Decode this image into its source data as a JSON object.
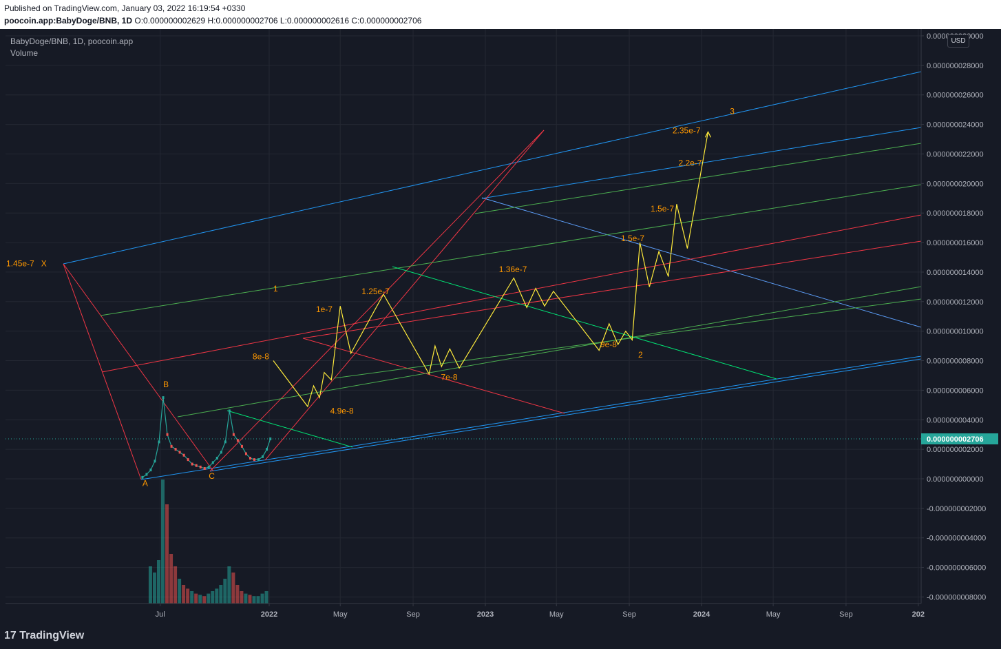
{
  "header": {
    "published": "Published on TradingView.com, January 03, 2022 16:19:54 +0330",
    "symbol": "poocoin.app:BabyDoge/BNB, 1D",
    "o_label": "O:",
    "o_value": "0.000000002629",
    "h_label": "H:",
    "h_value": "0.000000002706",
    "l_label": "L:",
    "l_value": "0.000000002616",
    "c_label": "C:",
    "c_value": "0.000000002706"
  },
  "legend": {
    "title": "BabyDoge/BNB, 1D, poocoin.app",
    "volume": "Volume"
  },
  "currency_button": "USD",
  "footer": {
    "logo": "TradingView"
  },
  "colors": {
    "background": "#161a25",
    "grid": "#242833",
    "candle_up": "#26a69a",
    "candle_down": "#ef5350",
    "projection": "#ffeb3b",
    "annotation": "#ff9800",
    "price_tag": "#26a69a"
  },
  "chart_data": {
    "type": "line",
    "ylim": [
      -9e-09,
      3e-08
    ],
    "x_tick_labels": [
      "Jul",
      "2022",
      "May",
      "Sep",
      "2023",
      "May",
      "Sep",
      "2024",
      "May",
      "Sep",
      "202"
    ],
    "y_tick_labels": [
      "0.000000030000",
      "0.000000028000",
      "0.000000026000",
      "0.000000024000",
      "0.000000022000",
      "0.000000020000",
      "0.000000018000",
      "0.000000016000",
      "0.000000014000",
      "0.000000012000",
      "0.000000010000",
      "0.000000008000",
      "0.000000006000",
      "0.000000004000",
      "0.000000002000",
      "0.000000000000",
      "-0.000000002000",
      "-0.000000004000",
      "-0.000000006000",
      "-0.000000008000"
    ],
    "y_ticks": [
      3e-08,
      2.8e-08,
      2.6e-08,
      2.4e-08,
      2.2e-08,
      2e-08,
      1.8e-08,
      1.6e-08,
      1.4e-08,
      1.2e-08,
      1e-08,
      8e-09,
      6e-09,
      4e-09,
      2e-09,
      0.0,
      -2e-09,
      -4e-09,
      -6e-09,
      -8e-09
    ],
    "last_price": {
      "label": "0.000000002706",
      "value": 2.706e-09
    },
    "price_series": {
      "x": [
        "2021-06-01",
        "2021-06-08",
        "2021-06-15",
        "2021-06-22",
        "2021-06-29",
        "2021-07-06",
        "2021-07-13",
        "2021-07-20",
        "2021-07-27",
        "2021-08-03",
        "2021-08-10",
        "2021-08-17",
        "2021-08-24",
        "2021-08-31",
        "2021-09-07",
        "2021-09-14",
        "2021-09-21",
        "2021-09-28",
        "2021-10-05",
        "2021-10-12",
        "2021-10-19",
        "2021-10-26",
        "2021-11-02",
        "2021-11-09",
        "2021-11-16",
        "2021-11-23",
        "2021-11-30",
        "2021-12-07",
        "2021-12-14",
        "2021-12-21",
        "2021-12-28",
        "2022-01-03"
      ],
      "y": [
        1e-10,
        3e-10,
        6e-10,
        1.2e-09,
        2.5e-09,
        5.5e-09,
        3e-09,
        2.2e-09,
        2e-09,
        1.8e-09,
        1.6e-09,
        1.3e-09,
        1e-09,
        9e-10,
        8e-10,
        7e-10,
        8e-10,
        1.1e-09,
        1.4e-09,
        1.8e-09,
        2.5e-09,
        4.6e-09,
        3e-09,
        2.6e-09,
        2.2e-09,
        1.7e-09,
        1.4e-09,
        1.3e-09,
        1.3e-09,
        1.5e-09,
        2e-09,
        2.706e-09
      ]
    },
    "projection": {
      "x": [
        "2022-01-08",
        "2022-03-07",
        "2022-03-17",
        "2022-03-27",
        "2022-04-04",
        "2022-04-16",
        "2022-05-01",
        "2022-05-19",
        "2022-07-13",
        "2022-09-28",
        "2022-10-08",
        "2022-10-19",
        "2022-11-02",
        "2022-11-18",
        "2023-02-18",
        "2023-03-12",
        "2023-03-27",
        "2023-04-11",
        "2023-04-26",
        "2023-07-12",
        "2023-07-29",
        "2023-08-13",
        "2023-08-26",
        "2023-09-06",
        "2023-09-19",
        "2023-10-05",
        "2023-10-21",
        "2023-11-06",
        "2023-11-20",
        "2023-12-08",
        "2024-01-12",
        "2024-02-03"
      ],
      "y": [
        8e-09,
        4.9e-09,
        6.3e-09,
        5.5e-09,
        7.2e-09,
        6.7e-09,
        1.17e-08,
        8.5e-09,
        1.25e-08,
        7.1e-09,
        9e-09,
        7.6e-09,
        8.8e-09,
        7.5e-09,
        1.36e-08,
        1.16e-08,
        1.29e-08,
        1.17e-08,
        1.27e-08,
        8.7e-09,
        1.05e-08,
        9.1e-09,
        1e-08,
        9.4e-09,
        1.6e-08,
        1.3e-08,
        1.54e-08,
        1.37e-08,
        1.86e-08,
        1.56e-08,
        2.35e-08,
        2.35e-08
      ]
    },
    "volume": {
      "x": [
        "2021-06-15",
        "2021-06-22",
        "2021-06-29",
        "2021-07-06",
        "2021-07-13",
        "2021-07-20",
        "2021-07-27",
        "2021-08-03",
        "2021-08-10",
        "2021-08-17",
        "2021-08-24",
        "2021-08-31",
        "2021-09-07",
        "2021-09-14",
        "2021-09-21",
        "2021-09-28",
        "2021-10-05",
        "2021-10-12",
        "2021-10-19",
        "2021-10-26",
        "2021-11-02",
        "2021-11-09",
        "2021-11-16",
        "2021-11-23",
        "2021-11-30",
        "2021-12-07",
        "2021-12-14",
        "2021-12-21",
        "2021-12-28"
      ],
      "relative": [
        0.3,
        0.25,
        0.35,
        1.0,
        0.8,
        0.4,
        0.3,
        0.2,
        0.15,
        0.12,
        0.1,
        0.08,
        0.07,
        0.06,
        0.08,
        0.1,
        0.12,
        0.15,
        0.2,
        0.3,
        0.25,
        0.15,
        0.1,
        0.08,
        0.07,
        0.06,
        0.06,
        0.08,
        0.1
      ],
      "up": [
        true,
        true,
        true,
        true,
        false,
        false,
        false,
        true,
        false,
        false,
        true,
        false,
        true,
        false,
        true,
        true,
        true,
        true,
        true,
        true,
        false,
        false,
        false,
        true,
        false,
        true,
        true,
        true,
        true
      ]
    },
    "point_labels": [
      {
        "text": "A",
        "x": "2021-06-01",
        "y": -5e-10
      },
      {
        "text": "B",
        "x": "2021-07-06",
        "y": 6.2e-09
      },
      {
        "text": "C",
        "x": "2021-09-21",
        "y": 0.0
      },
      {
        "text": "X",
        "x": "2020-12-12",
        "y": 1.44e-08
      },
      {
        "text": "1.45e-7",
        "x": "2020-10-14",
        "y": 1.44e-08
      },
      {
        "text": "1",
        "x": "2022-01-08",
        "y": 1.27e-08
      },
      {
        "text": "8e-8",
        "x": "2021-12-04",
        "y": 8.1e-09
      },
      {
        "text": "1e-7",
        "x": "2022-03-21",
        "y": 1.13e-08
      },
      {
        "text": "4.9e-8",
        "x": "2022-04-14",
        "y": 4.4e-09
      },
      {
        "text": "1.25e-7",
        "x": "2022-06-06",
        "y": 1.25e-08
      },
      {
        "text": "7e-8",
        "x": "2022-10-18",
        "y": 6.7e-09
      },
      {
        "text": "1.36e-7",
        "x": "2023-01-24",
        "y": 1.4e-08
      },
      {
        "text": "9e-8",
        "x": "2023-07-14",
        "y": 8.9e-09
      },
      {
        "text": "2",
        "x": "2023-09-16",
        "y": 8.2e-09
      },
      {
        "text": "1.5e-7",
        "x": "2023-08-18",
        "y": 1.61e-08
      },
      {
        "text": "1.5e-7",
        "x": "2023-10-07",
        "y": 1.81e-08
      },
      {
        "text": "2.2e-7",
        "x": "2023-11-23",
        "y": 2.12e-08
      },
      {
        "text": "2.35e-7",
        "x": "2023-11-13",
        "y": 2.34e-08
      },
      {
        "text": "3",
        "x": "2024-02-18",
        "y": 2.47e-08
      }
    ]
  }
}
